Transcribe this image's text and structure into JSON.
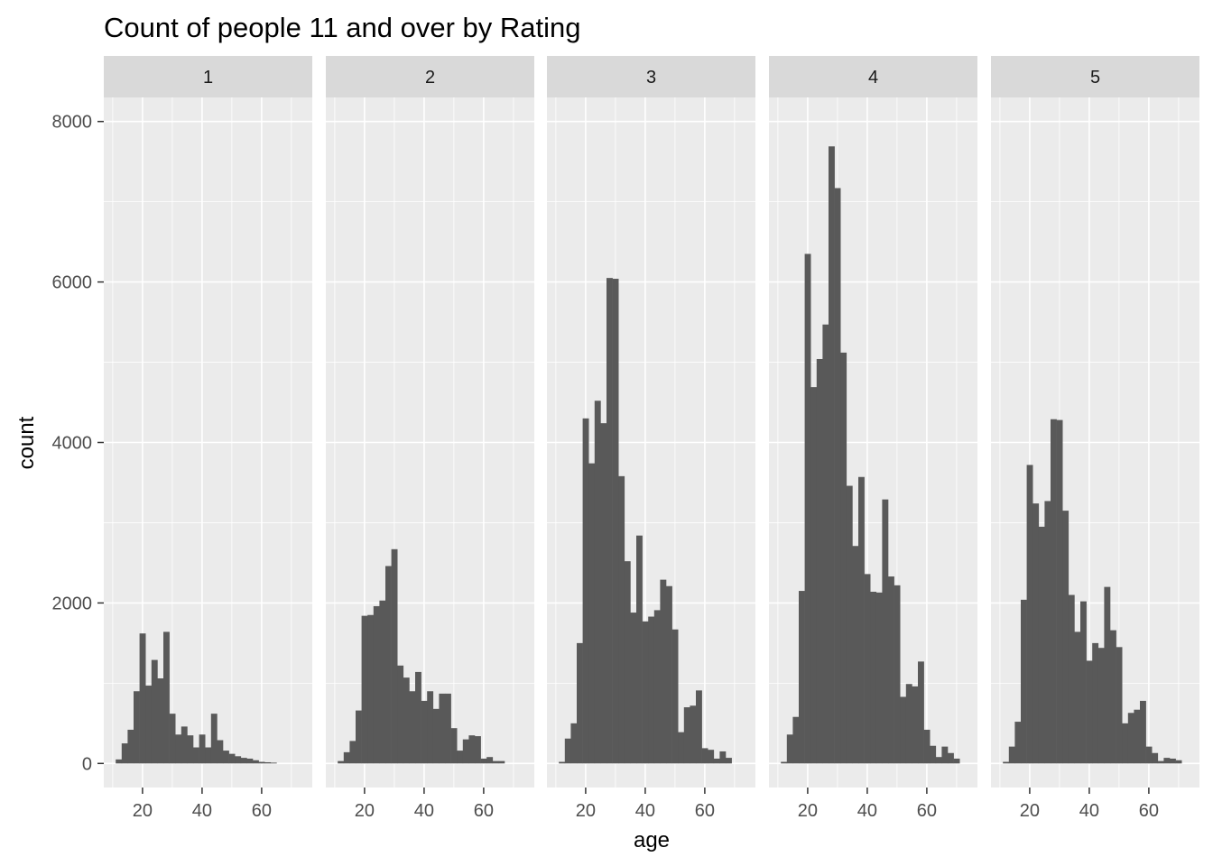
{
  "chart_data": {
    "type": "bar",
    "subtype": "faceted-histogram",
    "title": "Count of people 11 and over by Rating",
    "xlabel": "age",
    "ylabel": "count",
    "ylim": [
      -300,
      8300
    ],
    "xlim": [
      7,
      77
    ],
    "y_ticks": [
      0,
      2000,
      4000,
      6000,
      8000
    ],
    "x_ticks": [
      20,
      40,
      60
    ],
    "bin_start": 9,
    "bin_width": 2,
    "grid": true,
    "colors": {
      "bar": "#595959",
      "panel_background": "#ebebeb",
      "grid": "#ffffff",
      "strip_background": "#d9d9d9"
    },
    "facets": [
      {
        "label": "1",
        "counts": [
          0,
          50,
          250,
          420,
          900,
          1620,
          970,
          1290,
          1060,
          1640,
          620,
          360,
          460,
          350,
          200,
          360,
          200,
          620,
          290,
          160,
          120,
          90,
          70,
          60,
          40,
          20,
          15,
          10,
          0,
          0,
          0,
          0,
          0,
          0
        ]
      },
      {
        "label": "2",
        "counts": [
          0,
          30,
          140,
          280,
          660,
          1840,
          1850,
          1960,
          2030,
          2460,
          2670,
          1220,
          1070,
          900,
          1140,
          780,
          900,
          680,
          870,
          870,
          440,
          160,
          300,
          350,
          340,
          60,
          80,
          30,
          30,
          0,
          0,
          0,
          0,
          0
        ]
      },
      {
        "label": "3",
        "counts": [
          0,
          20,
          310,
          500,
          1500,
          4300,
          3740,
          4520,
          4240,
          6050,
          6040,
          3580,
          2520,
          1880,
          2840,
          1770,
          1830,
          1910,
          2290,
          2210,
          1670,
          390,
          700,
          720,
          910,
          190,
          170,
          60,
          150,
          70,
          0,
          0,
          0,
          0
        ]
      },
      {
        "label": "4",
        "counts": [
          0,
          20,
          360,
          580,
          2150,
          6350,
          4690,
          5040,
          5470,
          7690,
          7170,
          5120,
          3460,
          2710,
          3570,
          2360,
          2140,
          2130,
          3290,
          2330,
          2220,
          830,
          990,
          960,
          1270,
          420,
          220,
          80,
          210,
          130,
          60,
          0,
          0,
          0
        ]
      },
      {
        "label": "5",
        "counts": [
          0,
          20,
          210,
          520,
          2040,
          3720,
          3240,
          2950,
          3270,
          4290,
          4280,
          3150,
          2100,
          1640,
          2020,
          1280,
          1500,
          1440,
          2200,
          1660,
          1450,
          500,
          630,
          670,
          780,
          210,
          130,
          30,
          70,
          60,
          40,
          0,
          0,
          0
        ]
      }
    ]
  }
}
